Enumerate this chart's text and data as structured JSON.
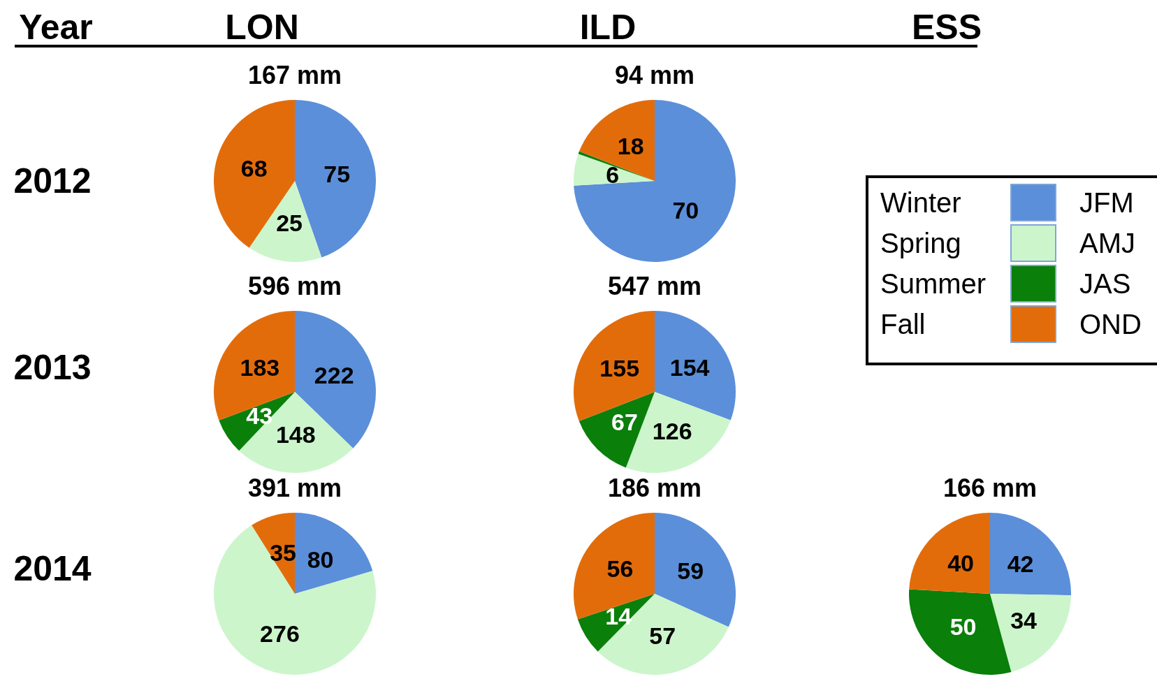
{
  "chart_data": [
    {
      "type": "other",
      "annotations": [
        "Year",
        "LON",
        "ILD",
        "ESS",
        "2012",
        "2013",
        "2014"
      ]
    },
    {
      "type": "pie",
      "title": "167 mm",
      "categories": [
        null,
        null,
        null
      ],
      "values": [
        75,
        25,
        68
      ],
      "colors": [
        "#5b8fd9",
        "#ccf5cc",
        "#e36c0a"
      ],
      "data_labels": true
    },
    {
      "type": "pie",
      "title": "94 mm",
      "categories": [
        null,
        null,
        null,
        null
      ],
      "values": [
        70,
        6,
        0.5,
        18
      ],
      "colors": [
        "#5b8fd9",
        "#ccf5cc",
        "#0a7f0a",
        "#e36c0a"
      ],
      "value_labels": [
        "70",
        "6",
        null,
        "18"
      ]
    },
    {
      "type": "other",
      "categories": [
        "Winter",
        "Spring",
        "Summer",
        "Fall"
      ],
      "y2_categories": [
        "JFM",
        "AMJ",
        "JAS",
        "OND"
      ],
      "colors": [
        "#5b8fd9",
        "#ccf5cc",
        "#0a7f0a",
        "#e36c0a"
      ]
    },
    {
      "type": "pie",
      "title": "596 mm",
      "categories": [
        null,
        null,
        null,
        null
      ],
      "values": [
        222,
        148,
        43,
        183
      ],
      "colors": [
        "#5b8fd9",
        "#ccf5cc",
        "#0a7f0a",
        "#e36c0a"
      ],
      "data_labels": true
    },
    {
      "type": "pie",
      "title": "547 mm",
      "categories": [
        null,
        null,
        null,
        null
      ],
      "values": [
        154,
        126,
        67,
        155
      ],
      "colors": [
        "#5b8fd9",
        "#ccf5cc",
        "#0a7f0a",
        "#e36c0a"
      ],
      "data_labels": true
    },
    {
      "type": "pie",
      "title": "391 mm",
      "categories": [
        null,
        null,
        null
      ],
      "values": [
        80,
        276,
        35
      ],
      "colors": [
        "#5b8fd9",
        "#ccf5cc",
        "#e36c0a"
      ],
      "data_labels": true
    },
    {
      "type": "pie",
      "title": "186 mm",
      "categories": [
        null,
        null,
        null,
        null
      ],
      "values": [
        59,
        57,
        14,
        56
      ],
      "colors": [
        "#5b8fd9",
        "#ccf5cc",
        "#0a7f0a",
        "#e36c0a"
      ],
      "data_labels": true
    },
    {
      "type": "pie",
      "title": "166 mm",
      "categories": [
        null,
        null,
        null,
        null
      ],
      "values": [
        42,
        34,
        50,
        40
      ],
      "colors": [
        "#5b8fd9",
        "#ccf5cc",
        "#0a7f0a",
        "#e36c0a"
      ],
      "data_labels": true
    }
  ]
}
